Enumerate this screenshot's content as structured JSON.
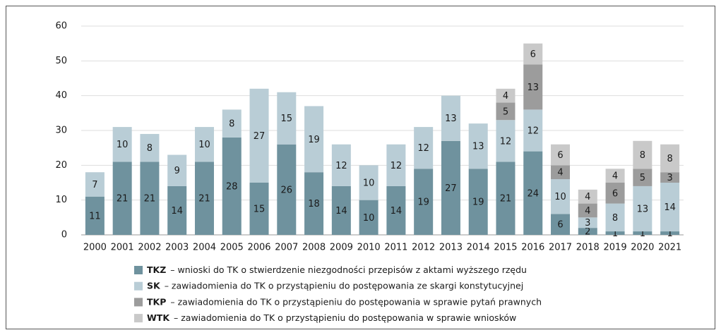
{
  "chart_data": {
    "type": "stacked_bar",
    "categories": [
      "2000",
      "2001",
      "2002",
      "2003",
      "2004",
      "2005",
      "2006",
      "2007",
      "2008",
      "2009",
      "2010",
      "2011",
      "2012",
      "2013",
      "2014",
      "2015",
      "2016",
      "2017",
      "2018",
      "2019",
      "2020",
      "2021"
    ],
    "series": [
      {
        "name": "TKZ",
        "description": "– wnioski do TK o stwierdzenie niezgodności przepisów z aktami wyższego rzędu",
        "color": "#6f929e",
        "values": [
          11,
          21,
          21,
          14,
          21,
          28,
          15,
          26,
          18,
          14,
          10,
          14,
          19,
          27,
          19,
          21,
          24,
          6,
          2,
          1,
          1,
          1
        ]
      },
      {
        "name": "SK",
        "description": "– zawiadomienia do TK o przystąpieniu do postępowania ze skargi konstytucyjnej",
        "color": "#b9cdd6",
        "values": [
          7,
          10,
          8,
          9,
          10,
          8,
          27,
          15,
          19,
          12,
          10,
          12,
          12,
          13,
          13,
          12,
          12,
          10,
          3,
          8,
          13,
          14
        ]
      },
      {
        "name": "TKP",
        "description": "– zawiadomienia do TK o przystąpieniu do postępowania w sprawie pytań prawnych",
        "color": "#9c9c9c",
        "values": [
          null,
          null,
          null,
          null,
          null,
          null,
          null,
          null,
          null,
          null,
          null,
          null,
          null,
          null,
          null,
          5,
          13,
          4,
          4,
          6,
          5,
          3
        ]
      },
      {
        "name": "WTK",
        "description": "– zawiadomienia do TK o przystąpieniu do postępowania w sprawie wniosków",
        "color": "#c9c9c9",
        "values": [
          null,
          null,
          null,
          null,
          null,
          null,
          null,
          null,
          null,
          null,
          null,
          null,
          null,
          null,
          null,
          4,
          6,
          6,
          4,
          4,
          8,
          8
        ]
      }
    ],
    "ylim": [
      0,
      60
    ],
    "yticks": [
      0,
      10,
      20,
      30,
      40,
      50,
      60
    ],
    "grid": true
  }
}
